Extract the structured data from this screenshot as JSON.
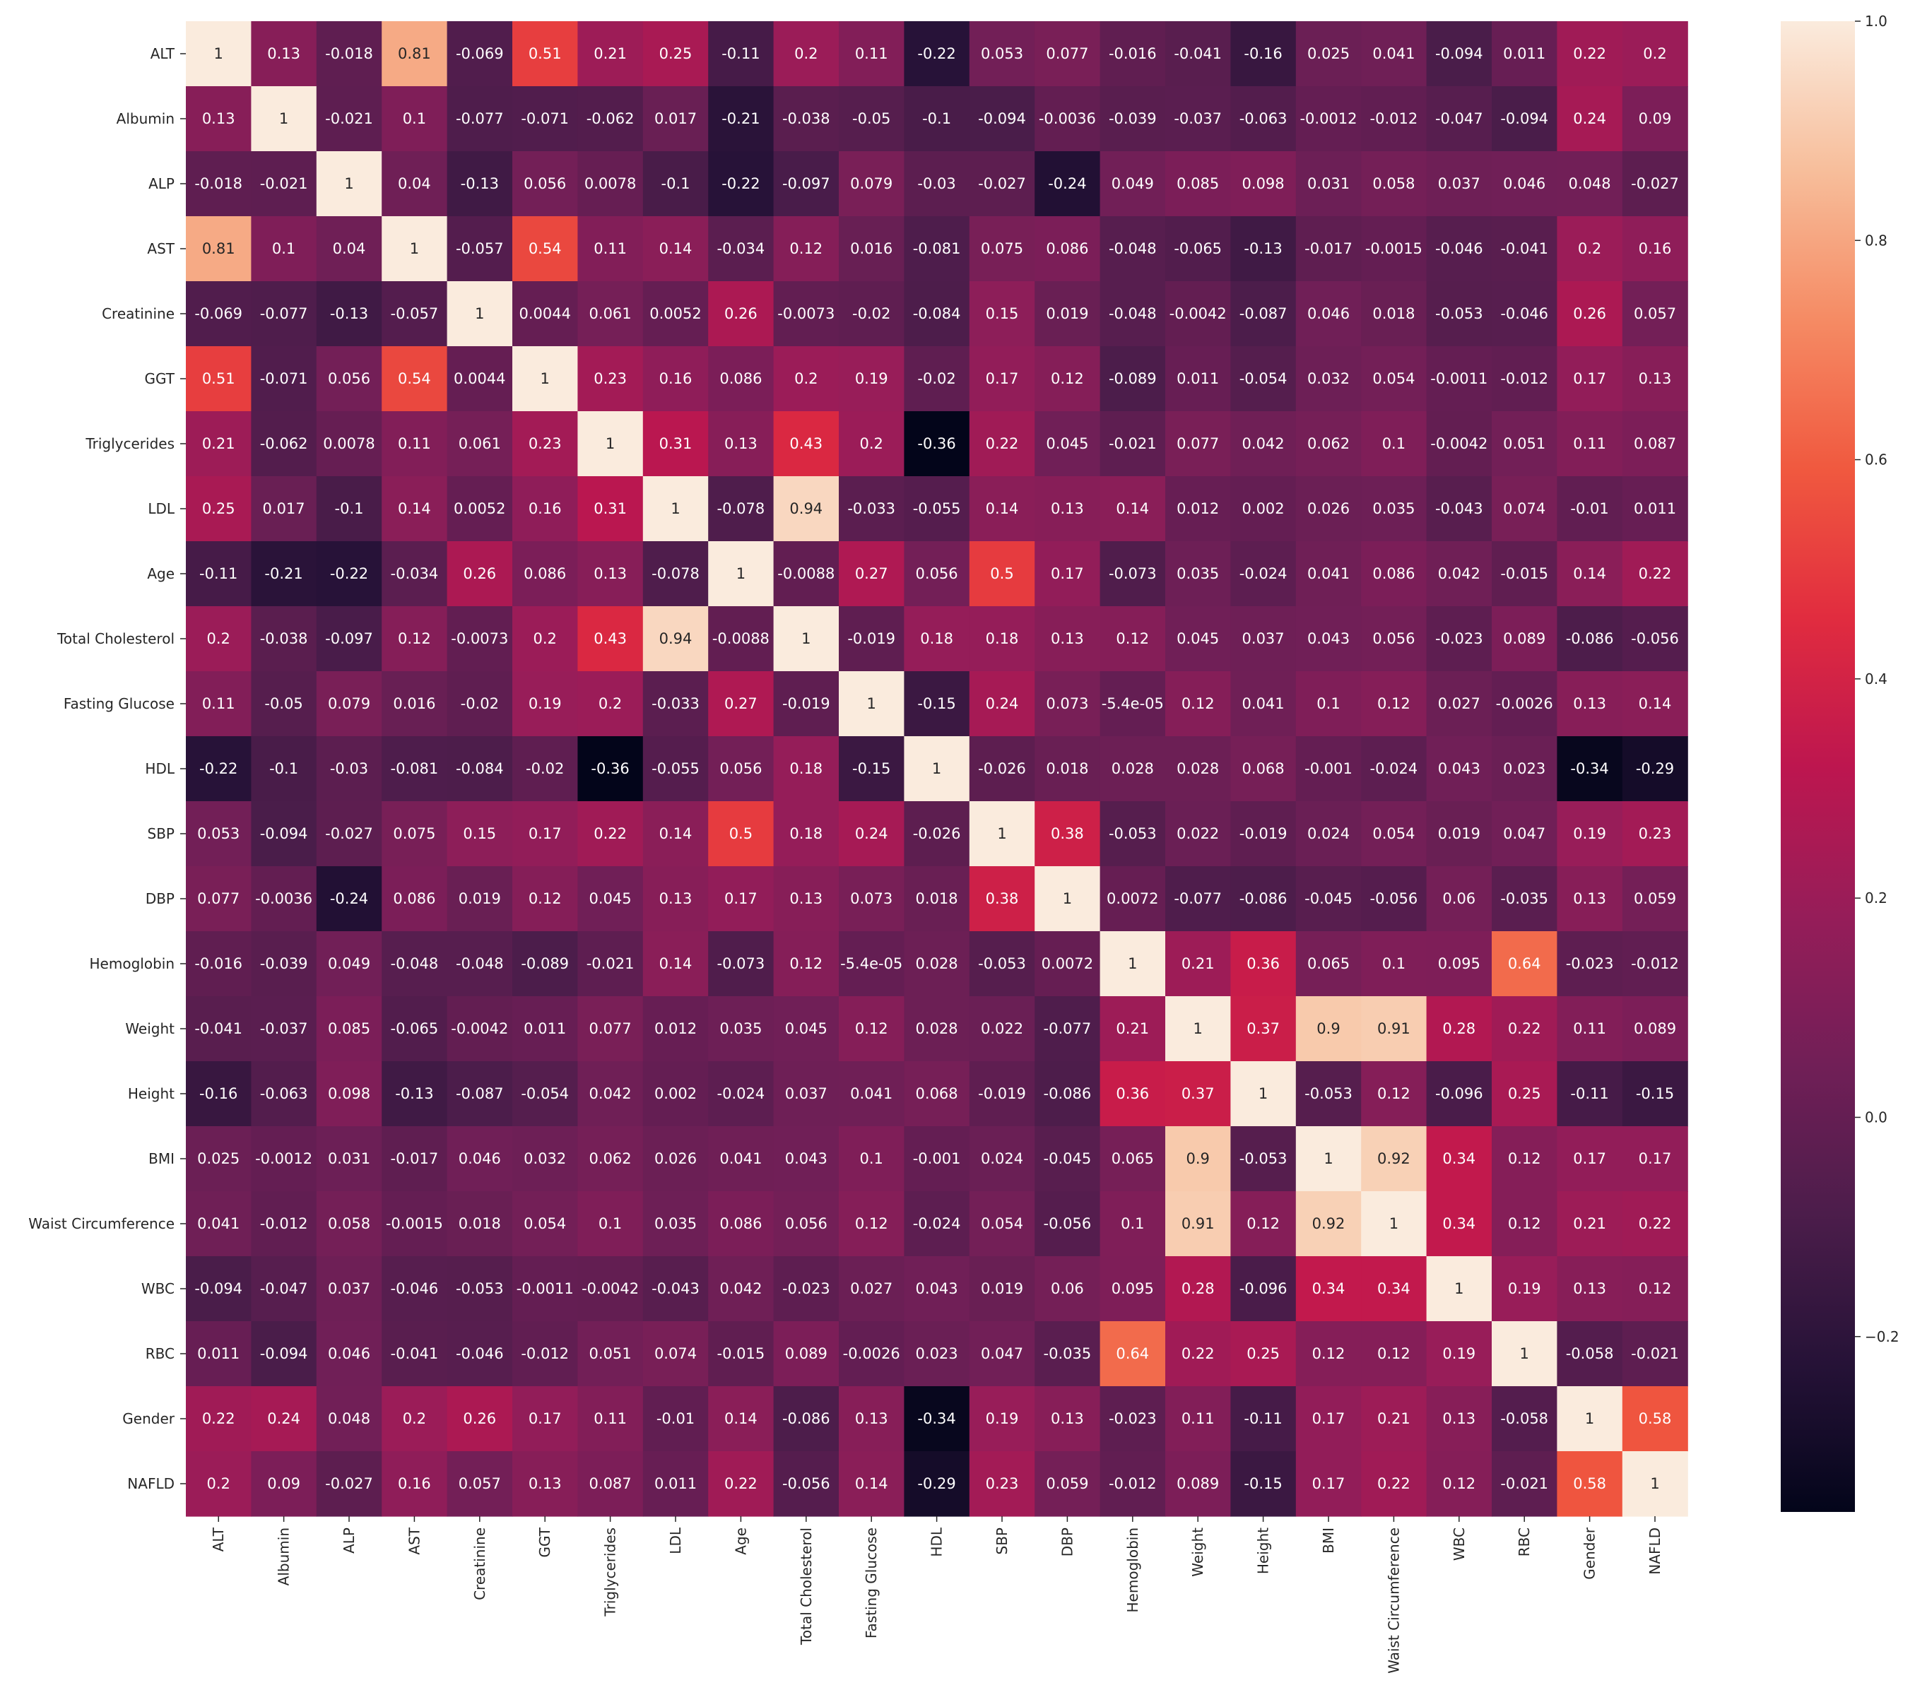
{
  "chart_data": {
    "type": "heatmap",
    "title": "",
    "xlabel": "",
    "ylabel": "",
    "colormap": "rocket",
    "vmin": -0.36,
    "vmax": 1.0,
    "colorbar_ticks": [
      "1.0",
      "0.8",
      "0.6",
      "0.4",
      "0.2",
      "0.0",
      "−0.2"
    ],
    "colorbar_tick_values": [
      1.0,
      0.8,
      0.6,
      0.4,
      0.2,
      0.0,
      -0.2
    ],
    "labels": [
      "ALT",
      "Albumin",
      "ALP",
      "AST",
      "Creatinine",
      "GGT",
      "Triglycerides",
      "LDL",
      "Age",
      "Total Cholesterol",
      "Fasting Glucose",
      "HDL",
      "SBP",
      "DBP",
      "Hemoglobin",
      "Weight",
      "Height",
      "BMI",
      "Waist Circumference",
      "WBC",
      "RBC",
      "Gender",
      "NAFLD"
    ],
    "rows": [
      [
        "1",
        "0.13",
        "-0.018",
        "0.81",
        "-0.069",
        "0.51",
        "0.21",
        "0.25",
        "-0.11",
        "0.2",
        "0.11",
        "-0.22",
        "0.053",
        "0.077",
        "-0.016",
        "-0.041",
        "-0.16",
        "0.025",
        "0.041",
        "-0.094",
        "0.011",
        "0.22",
        "0.2"
      ],
      [
        "0.13",
        "1",
        "-0.021",
        "0.1",
        "-0.077",
        "-0.071",
        "-0.062",
        "0.017",
        "-0.21",
        "-0.038",
        "-0.05",
        "-0.1",
        "-0.094",
        "-0.0036",
        "-0.039",
        "-0.037",
        "-0.063",
        "-0.0012",
        "-0.012",
        "-0.047",
        "-0.094",
        "0.24",
        "0.09"
      ],
      [
        "-0.018",
        "-0.021",
        "1",
        "0.04",
        "-0.13",
        "0.056",
        "0.0078",
        "-0.1",
        "-0.22",
        "-0.097",
        "0.079",
        "-0.03",
        "-0.027",
        "-0.24",
        "0.049",
        "0.085",
        "0.098",
        "0.031",
        "0.058",
        "0.037",
        "0.046",
        "0.048",
        "-0.027"
      ],
      [
        "0.81",
        "0.1",
        "0.04",
        "1",
        "-0.057",
        "0.54",
        "0.11",
        "0.14",
        "-0.034",
        "0.12",
        "0.016",
        "-0.081",
        "0.075",
        "0.086",
        "-0.048",
        "-0.065",
        "-0.13",
        "-0.017",
        "-0.0015",
        "-0.046",
        "-0.041",
        "0.2",
        "0.16"
      ],
      [
        "-0.069",
        "-0.077",
        "-0.13",
        "-0.057",
        "1",
        "0.0044",
        "0.061",
        "0.0052",
        "0.26",
        "-0.0073",
        "-0.02",
        "-0.084",
        "0.15",
        "0.019",
        "-0.048",
        "-0.0042",
        "-0.087",
        "0.046",
        "0.018",
        "-0.053",
        "-0.046",
        "0.26",
        "0.057"
      ],
      [
        "0.51",
        "-0.071",
        "0.056",
        "0.54",
        "0.0044",
        "1",
        "0.23",
        "0.16",
        "0.086",
        "0.2",
        "0.19",
        "-0.02",
        "0.17",
        "0.12",
        "-0.089",
        "0.011",
        "-0.054",
        "0.032",
        "0.054",
        "-0.0011",
        "-0.012",
        "0.17",
        "0.13"
      ],
      [
        "0.21",
        "-0.062",
        "0.0078",
        "0.11",
        "0.061",
        "0.23",
        "1",
        "0.31",
        "0.13",
        "0.43",
        "0.2",
        "-0.36",
        "0.22",
        "0.045",
        "-0.021",
        "0.077",
        "0.042",
        "0.062",
        "0.1",
        "-0.0042",
        "0.051",
        "0.11",
        "0.087"
      ],
      [
        "0.25",
        "0.017",
        "-0.1",
        "0.14",
        "0.0052",
        "0.16",
        "0.31",
        "1",
        "-0.078",
        "0.94",
        "-0.033",
        "-0.055",
        "0.14",
        "0.13",
        "0.14",
        "0.012",
        "0.002",
        "0.026",
        "0.035",
        "-0.043",
        "0.074",
        "-0.01",
        "0.011"
      ],
      [
        "-0.11",
        "-0.21",
        "-0.22",
        "-0.034",
        "0.26",
        "0.086",
        "0.13",
        "-0.078",
        "1",
        "-0.0088",
        "0.27",
        "0.056",
        "0.5",
        "0.17",
        "-0.073",
        "0.035",
        "-0.024",
        "0.041",
        "0.086",
        "0.042",
        "-0.015",
        "0.14",
        "0.22"
      ],
      [
        "0.2",
        "-0.038",
        "-0.097",
        "0.12",
        "-0.0073",
        "0.2",
        "0.43",
        "0.94",
        "-0.0088",
        "1",
        "-0.019",
        "0.18",
        "0.18",
        "0.13",
        "0.12",
        "0.045",
        "0.037",
        "0.043",
        "0.056",
        "-0.023",
        "0.089",
        "-0.086",
        "-0.056"
      ],
      [
        "0.11",
        "-0.05",
        "0.079",
        "0.016",
        "-0.02",
        "0.19",
        "0.2",
        "-0.033",
        "0.27",
        "-0.019",
        "1",
        "-0.15",
        "0.24",
        "0.073",
        "-5.4e-05",
        "0.12",
        "0.041",
        "0.1",
        "0.12",
        "0.027",
        "-0.0026",
        "0.13",
        "0.14"
      ],
      [
        "-0.22",
        "-0.1",
        "-0.03",
        "-0.081",
        "-0.084",
        "-0.02",
        "-0.36",
        "-0.055",
        "0.056",
        "0.18",
        "-0.15",
        "1",
        "-0.026",
        "0.018",
        "0.028",
        "0.028",
        "0.068",
        "-0.001",
        "-0.024",
        "0.043",
        "0.023",
        "-0.34",
        "-0.29"
      ],
      [
        "0.053",
        "-0.094",
        "-0.027",
        "0.075",
        "0.15",
        "0.17",
        "0.22",
        "0.14",
        "0.5",
        "0.18",
        "0.24",
        "-0.026",
        "1",
        "0.38",
        "-0.053",
        "0.022",
        "-0.019",
        "0.024",
        "0.054",
        "0.019",
        "0.047",
        "0.19",
        "0.23"
      ],
      [
        "0.077",
        "-0.0036",
        "-0.24",
        "0.086",
        "0.019",
        "0.12",
        "0.045",
        "0.13",
        "0.17",
        "0.13",
        "0.073",
        "0.018",
        "0.38",
        "1",
        "0.0072",
        "-0.077",
        "-0.086",
        "-0.045",
        "-0.056",
        "0.06",
        "-0.035",
        "0.13",
        "0.059"
      ],
      [
        "-0.016",
        "-0.039",
        "0.049",
        "-0.048",
        "-0.048",
        "-0.089",
        "-0.021",
        "0.14",
        "-0.073",
        "0.12",
        "-5.4e-05",
        "0.028",
        "-0.053",
        "0.0072",
        "1",
        "0.21",
        "0.36",
        "0.065",
        "0.1",
        "0.095",
        "0.64",
        "-0.023",
        "-0.012"
      ],
      [
        "-0.041",
        "-0.037",
        "0.085",
        "-0.065",
        "-0.0042",
        "0.011",
        "0.077",
        "0.012",
        "0.035",
        "0.045",
        "0.12",
        "0.028",
        "0.022",
        "-0.077",
        "0.21",
        "1",
        "0.37",
        "0.9",
        "0.91",
        "0.28",
        "0.22",
        "0.11",
        "0.089"
      ],
      [
        "-0.16",
        "-0.063",
        "0.098",
        "-0.13",
        "-0.087",
        "-0.054",
        "0.042",
        "0.002",
        "-0.024",
        "0.037",
        "0.041",
        "0.068",
        "-0.019",
        "-0.086",
        "0.36",
        "0.37",
        "1",
        "-0.053",
        "0.12",
        "-0.096",
        "0.25",
        "-0.11",
        "-0.15"
      ],
      [
        "0.025",
        "-0.0012",
        "0.031",
        "-0.017",
        "0.046",
        "0.032",
        "0.062",
        "0.026",
        "0.041",
        "0.043",
        "0.1",
        "-0.001",
        "0.024",
        "-0.045",
        "0.065",
        "0.9",
        "-0.053",
        "1",
        "0.92",
        "0.34",
        "0.12",
        "0.17",
        "0.17"
      ],
      [
        "0.041",
        "-0.012",
        "0.058",
        "-0.0015",
        "0.018",
        "0.054",
        "0.1",
        "0.035",
        "0.086",
        "0.056",
        "0.12",
        "-0.024",
        "0.054",
        "-0.056",
        "0.1",
        "0.91",
        "0.12",
        "0.92",
        "1",
        "0.34",
        "0.12",
        "0.21",
        "0.22"
      ],
      [
        "-0.094",
        "-0.047",
        "0.037",
        "-0.046",
        "-0.053",
        "-0.0011",
        "-0.0042",
        "-0.043",
        "0.042",
        "-0.023",
        "0.027",
        "0.043",
        "0.019",
        "0.06",
        "0.095",
        "0.28",
        "-0.096",
        "0.34",
        "0.34",
        "1",
        "0.19",
        "0.13",
        "0.12"
      ],
      [
        "0.011",
        "-0.094",
        "0.046",
        "-0.041",
        "-0.046",
        "-0.012",
        "0.051",
        "0.074",
        "-0.015",
        "0.089",
        "-0.0026",
        "0.023",
        "0.047",
        "-0.035",
        "0.64",
        "0.22",
        "0.25",
        "0.12",
        "0.12",
        "0.19",
        "1",
        "-0.058",
        "-0.021"
      ],
      [
        "0.22",
        "0.24",
        "0.048",
        "0.2",
        "0.26",
        "0.17",
        "0.11",
        "-0.01",
        "0.14",
        "-0.086",
        "0.13",
        "-0.34",
        "0.19",
        "0.13",
        "-0.023",
        "0.11",
        "-0.11",
        "0.17",
        "0.21",
        "0.13",
        "-0.058",
        "1",
        "0.58"
      ],
      [
        "0.2",
        "0.09",
        "-0.027",
        "0.16",
        "0.057",
        "0.13",
        "0.087",
        "0.011",
        "0.22",
        "-0.056",
        "0.14",
        "-0.29",
        "0.23",
        "0.059",
        "-0.012",
        "0.089",
        "-0.15",
        "0.17",
        "0.22",
        "0.12",
        "-0.021",
        "0.58",
        "1"
      ]
    ]
  }
}
